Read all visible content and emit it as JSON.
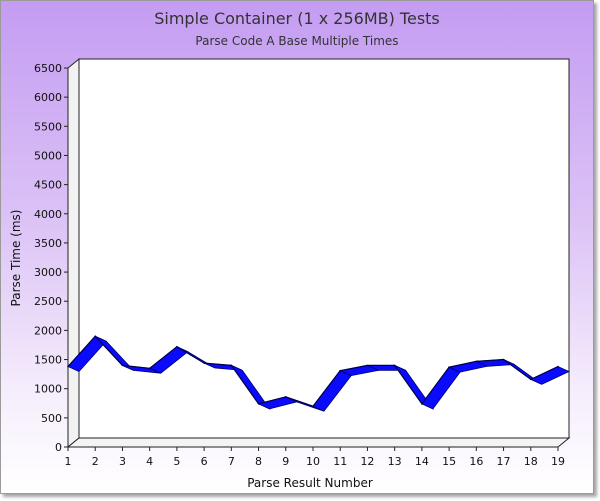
{
  "chart_data": {
    "type": "area",
    "title": "Simple Container (1 x 256MB) Tests",
    "subtitle": "Parse Code A Base Multiple Times",
    "xlabel": "Parse Result Number",
    "ylabel": "Parse Time (ms)",
    "x": [
      1,
      2,
      3,
      4,
      5,
      6,
      7,
      8,
      9,
      10,
      11,
      12,
      13,
      14,
      15,
      16,
      17,
      18,
      19
    ],
    "ylim": [
      0,
      6500
    ],
    "yticks": [
      0,
      500,
      1000,
      1500,
      2000,
      2500,
      3000,
      3500,
      4000,
      4500,
      5000,
      5500,
      6000,
      6500
    ],
    "series": [
      {
        "values": [
          1380,
          1900,
          1400,
          1350,
          1720,
          1440,
          1400,
          740,
          860,
          700,
          1310,
          1400,
          1400,
          740,
          1370,
          1470,
          1500,
          1160,
          1380
        ]
      }
    ],
    "grid": false,
    "legend": "none",
    "colors": {
      "series": "#0a0aff",
      "series_dark": "#00006a",
      "plot_bg": "#ffffff"
    }
  }
}
